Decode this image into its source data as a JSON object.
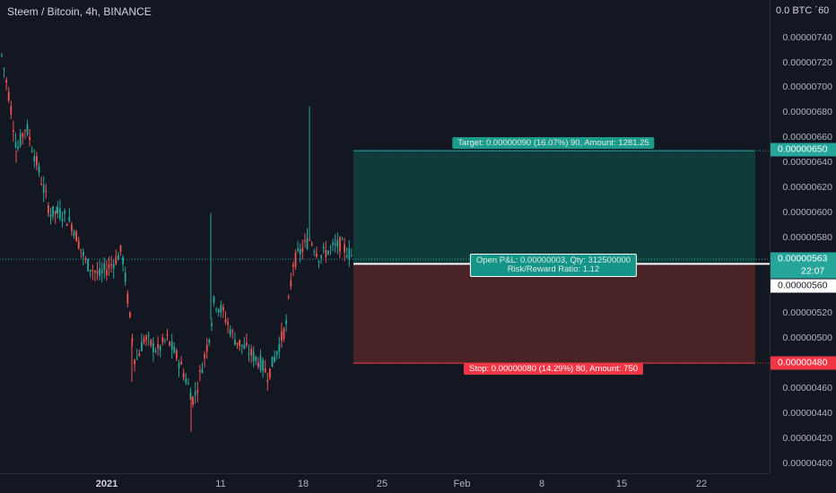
{
  "header": {
    "title": "Steem / Bitcoin, 4h, BINANCE"
  },
  "price_axis": {
    "unit": "0.0 BTC ´60",
    "labels": [
      "0.00000740",
      "0.00000720",
      "0.00000700",
      "0.00000680",
      "0.00000660",
      "0.00000640",
      "0.00000620",
      "0.00000600",
      "0.00000580",
      "0.00000520",
      "0.00000500",
      "0.00000480",
      "0.00000460",
      "0.00000440",
      "0.00000420",
      "0.00000400"
    ],
    "tags": {
      "target": {
        "text": "0.00000650",
        "color": "#26a69a"
      },
      "current": {
        "text": "0.00000563",
        "color": "#26a69a"
      },
      "countdown": "22:07",
      "crosshair": {
        "text": "0.00000560"
      },
      "stop": {
        "text": "0.00000480",
        "color": "#f23645"
      }
    }
  },
  "time_axis": {
    "labels": [
      "2021",
      "11",
      "18",
      "25",
      "Feb",
      "8",
      "15",
      "22"
    ]
  },
  "position": {
    "target_label": "Target: 0.00000090 (16.07%) 90, Amount: 1281.25",
    "pnl_line1": "Open P&L: 0.00000003, Qty: 312500000",
    "pnl_line2": "Risk/Reward Ratio: 1.12",
    "stop_label": "Stop: 0.00000080 (14.29%) 80, Amount: 750",
    "profit_color": "#0f3b3b",
    "loss_color": "#4a2326"
  },
  "chart_data": {
    "type": "candlestick",
    "title": "Steem / Bitcoin, 4h, BINANCE",
    "ylim": [
      3.95e-06,
      7.65e-06
    ],
    "x_labels": [
      "2021",
      "11",
      "18",
      "25",
      "Feb",
      "8",
      "15",
      "22"
    ],
    "last_price": 5.63e-06,
    "entry": 5.6e-06,
    "target": 6.5e-06,
    "stop": 4.8e-06,
    "path": [
      [
        7.3e-06,
        0
      ],
      [
        6.9e-06,
        10
      ],
      [
        6.5e-06,
        18
      ],
      [
        6.7e-06,
        28
      ],
      [
        6.4e-06,
        40
      ],
      [
        6e-06,
        55
      ],
      [
        6e-06,
        68
      ],
      [
        5.9e-06,
        80
      ],
      [
        5.6e-06,
        95
      ],
      [
        5.5e-06,
        110
      ],
      [
        5.6e-06,
        125
      ],
      [
        5.7e-06,
        135
      ],
      [
        5.1e-06,
        145
      ],
      [
        4.8e-06,
        150
      ],
      [
        5e-06,
        160
      ],
      [
        4.9e-06,
        175
      ],
      [
        5e-06,
        185
      ],
      [
        4.8e-06,
        200
      ],
      [
        4.6e-06,
        210
      ],
      [
        4.5e-06,
        215
      ],
      [
        4.7e-06,
        222
      ],
      [
        5e-06,
        232
      ],
      [
        5.3e-06,
        238
      ],
      [
        5.2e-06,
        248
      ],
      [
        5e-06,
        260
      ],
      [
        4.9e-06,
        275
      ],
      [
        4.8e-06,
        290
      ],
      [
        4.7e-06,
        298
      ],
      [
        4.9e-06,
        308
      ],
      [
        5.1e-06,
        318
      ],
      [
        5.6e-06,
        326
      ],
      [
        5.7e-06,
        335
      ],
      [
        5.8e-06,
        345
      ],
      [
        5.65e-06,
        355
      ],
      [
        5.7e-06,
        365
      ],
      [
        5.75e-06,
        378
      ],
      [
        5.63e-06,
        395
      ]
    ],
    "spikes": [
      [
        18,
        6.4e-06
      ],
      [
        63,
        6.05e-06
      ],
      [
        235,
        6e-06
      ],
      [
        345,
        6.85e-06
      ],
      [
        345,
        6e-06
      ],
      [
        213,
        4.25e-06
      ],
      [
        147,
        4.65e-06
      ]
    ]
  }
}
